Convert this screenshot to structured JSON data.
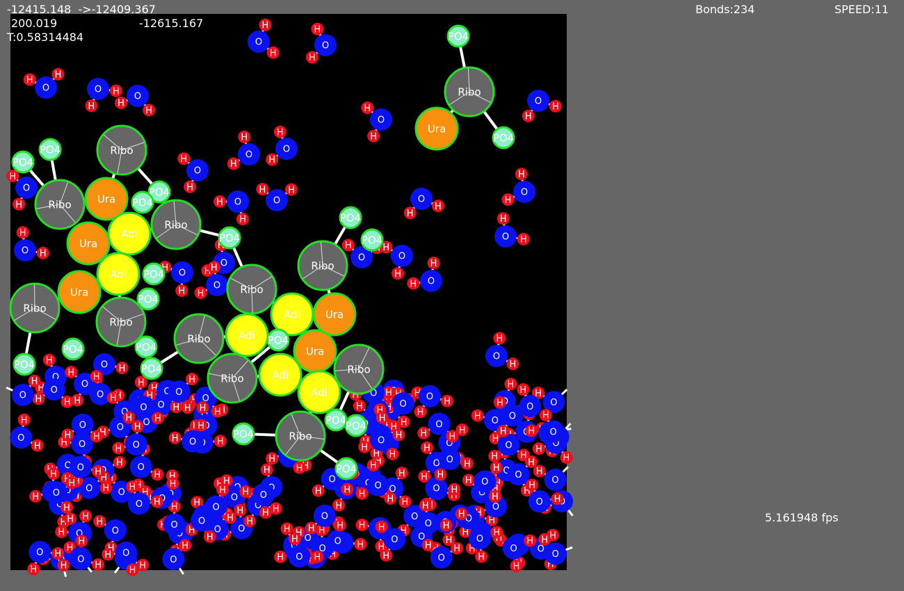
{
  "status": {
    "energy_line": "-12415.148  ->-12409.367",
    "value_a": "200.019",
    "value_b": "-12615.167",
    "temperature": "T:0.58314484",
    "bonds": "Bonds:234",
    "speed": "SPEED:11",
    "fps": "5.161948 fps"
  },
  "labels": {
    "ribose": "Ribo",
    "uracil": "Ura",
    "adenine": "Adi",
    "phosphate": "PO4",
    "oxygen": "O",
    "hydrogen": "H"
  }
}
